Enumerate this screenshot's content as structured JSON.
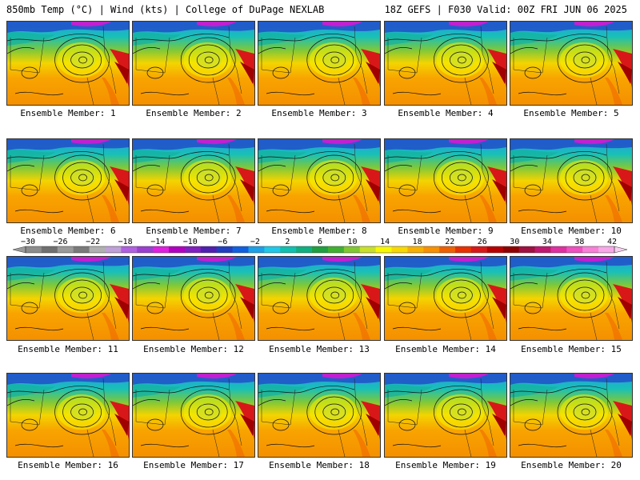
{
  "header": {
    "left": "850mb Temp (°C) | Wind (kts) | College of DuPage NEXLAB",
    "right": "18Z GEFS | F030 Valid: 00Z FRI JUN 06 2025"
  },
  "members": [
    {
      "label": "Ensemble Member: 1"
    },
    {
      "label": "Ensemble Member: 2"
    },
    {
      "label": "Ensemble Member: 3"
    },
    {
      "label": "Ensemble Member: 4"
    },
    {
      "label": "Ensemble Member: 5"
    },
    {
      "label": "Ensemble Member: 6"
    },
    {
      "label": "Ensemble Member: 7"
    },
    {
      "label": "Ensemble Member: 8"
    },
    {
      "label": "Ensemble Member: 9"
    },
    {
      "label": "Ensemble Member: 10"
    },
    {
      "label": "Ensemble Member: 11"
    },
    {
      "label": "Ensemble Member: 12"
    },
    {
      "label": "Ensemble Member: 13"
    },
    {
      "label": "Ensemble Member: 14"
    },
    {
      "label": "Ensemble Member: 15"
    },
    {
      "label": "Ensemble Member: 16"
    },
    {
      "label": "Ensemble Member: 17"
    },
    {
      "label": "Ensemble Member: 18"
    },
    {
      "label": "Ensemble Member: 19"
    },
    {
      "label": "Ensemble Member: 20"
    }
  ],
  "colorbar": {
    "labels": [
      "−30",
      "−26",
      "−22",
      "−18",
      "−14",
      "−10",
      "−6",
      "−2",
      "2",
      "6",
      "10",
      "14",
      "18",
      "22",
      "26",
      "30",
      "34",
      "38",
      "42"
    ],
    "colors": [
      "#8c8c8c",
      "#707070",
      "#9a9a9a",
      "#7a7a7a",
      "#b0b0b0",
      "#c0a0d8",
      "#b060e0",
      "#9a40d0",
      "#e020e0",
      "#b000c0",
      "#8020c0",
      "#5020b0",
      "#2040c0",
      "#1060e0",
      "#1ca0e8",
      "#20c8e8",
      "#10c0b0",
      "#10b080",
      "#20a040",
      "#40b030",
      "#80c830",
      "#c8e028",
      "#f8f800",
      "#f8d800",
      "#f8b000",
      "#f89000",
      "#f06000",
      "#e83000",
      "#d81818",
      "#b80000",
      "#900000",
      "#a01040",
      "#c01870",
      "#e030a0",
      "#f050c0",
      "#f880d8",
      "#f8a8e8"
    ]
  }
}
